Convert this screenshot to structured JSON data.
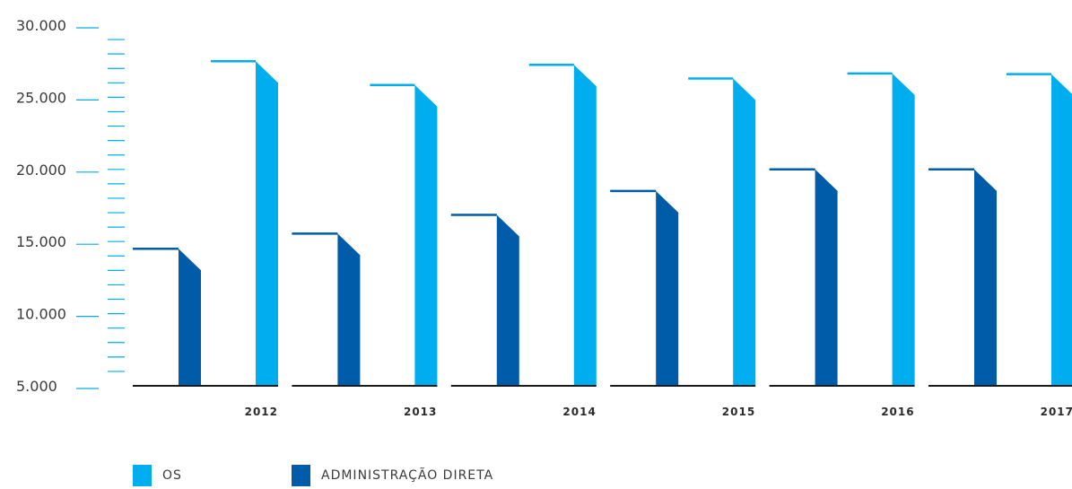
{
  "chart_data": {
    "type": "bar",
    "categories": [
      "2012",
      "2013",
      "2014",
      "2015",
      "2016",
      "2017"
    ],
    "series": [
      {
        "name": "ADMINISTRAÇÃO DIRETA",
        "color": "#005ba8",
        "values": [
          14500,
          15550,
          16850,
          18500,
          20000,
          20000
        ]
      },
      {
        "name": "OS",
        "color": "#00aeef",
        "values": [
          27500,
          25850,
          27250,
          26300,
          26650,
          26600
        ]
      }
    ],
    "ylim": [
      5000,
      30000
    ],
    "yticks": [
      "5.000",
      "10.000",
      "15.000",
      "20.000",
      "25.000",
      "30.000"
    ],
    "ytick_values": [
      5000,
      10000,
      15000,
      20000,
      25000,
      30000
    ],
    "minor_tick_step": 1000,
    "xlabel": "",
    "ylabel": "",
    "legend_position": "bottom-left",
    "axis_color": "#00aeef"
  },
  "legend": [
    {
      "label": "OS",
      "color": "#00aeef"
    },
    {
      "label": "ADMINISTRAÇÃO DIRETA",
      "color": "#005ba8"
    }
  ]
}
